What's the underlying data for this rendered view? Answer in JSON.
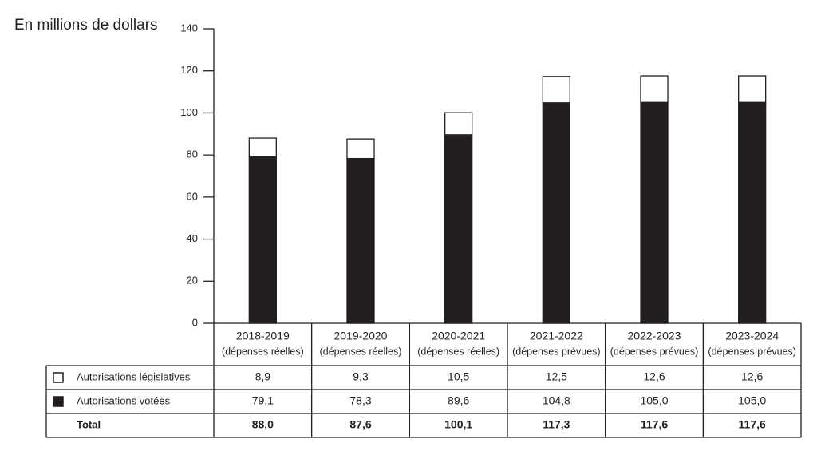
{
  "chart_data": {
    "type": "stacked-bar",
    "y_label": "En millions de dollars",
    "categories": [
      "2018-2019",
      "2019-2020",
      "2020-2021",
      "2021-2022",
      "2022-2023",
      "2023-2024"
    ],
    "category_notes": [
      "(dépenses réelles)",
      "(dépenses réelles)",
      "(dépenses réelles)",
      "(dépenses prévues)",
      "(dépenses prévues)",
      "(dépenses prévues)"
    ],
    "series": [
      {
        "name": "Autorisations votées",
        "color": "#231f20",
        "values": [
          79.1,
          78.3,
          89.6,
          104.8,
          105.0,
          105.0
        ],
        "value_labels": [
          "79,1",
          "78,3",
          "89,6",
          "104,8",
          "105,0",
          "105,0"
        ]
      },
      {
        "name": "Autorisations législatives",
        "color": "#ffffff",
        "values": [
          8.9,
          9.3,
          10.5,
          12.5,
          12.6,
          12.6
        ],
        "value_labels": [
          "8,9",
          "9,3",
          "10,5",
          "12,5",
          "12,6",
          "12,6"
        ]
      }
    ],
    "total": {
      "name": "Total",
      "values": [
        88.0,
        87.6,
        100.1,
        117.3,
        117.6,
        117.6
      ],
      "value_labels": [
        "88,0",
        "87,6",
        "100,1",
        "117,3",
        "117,6",
        "117,6"
      ]
    },
    "ylim": [
      0,
      140
    ],
    "yticks": [
      0,
      20,
      40,
      60,
      80,
      100,
      120,
      140
    ]
  }
}
